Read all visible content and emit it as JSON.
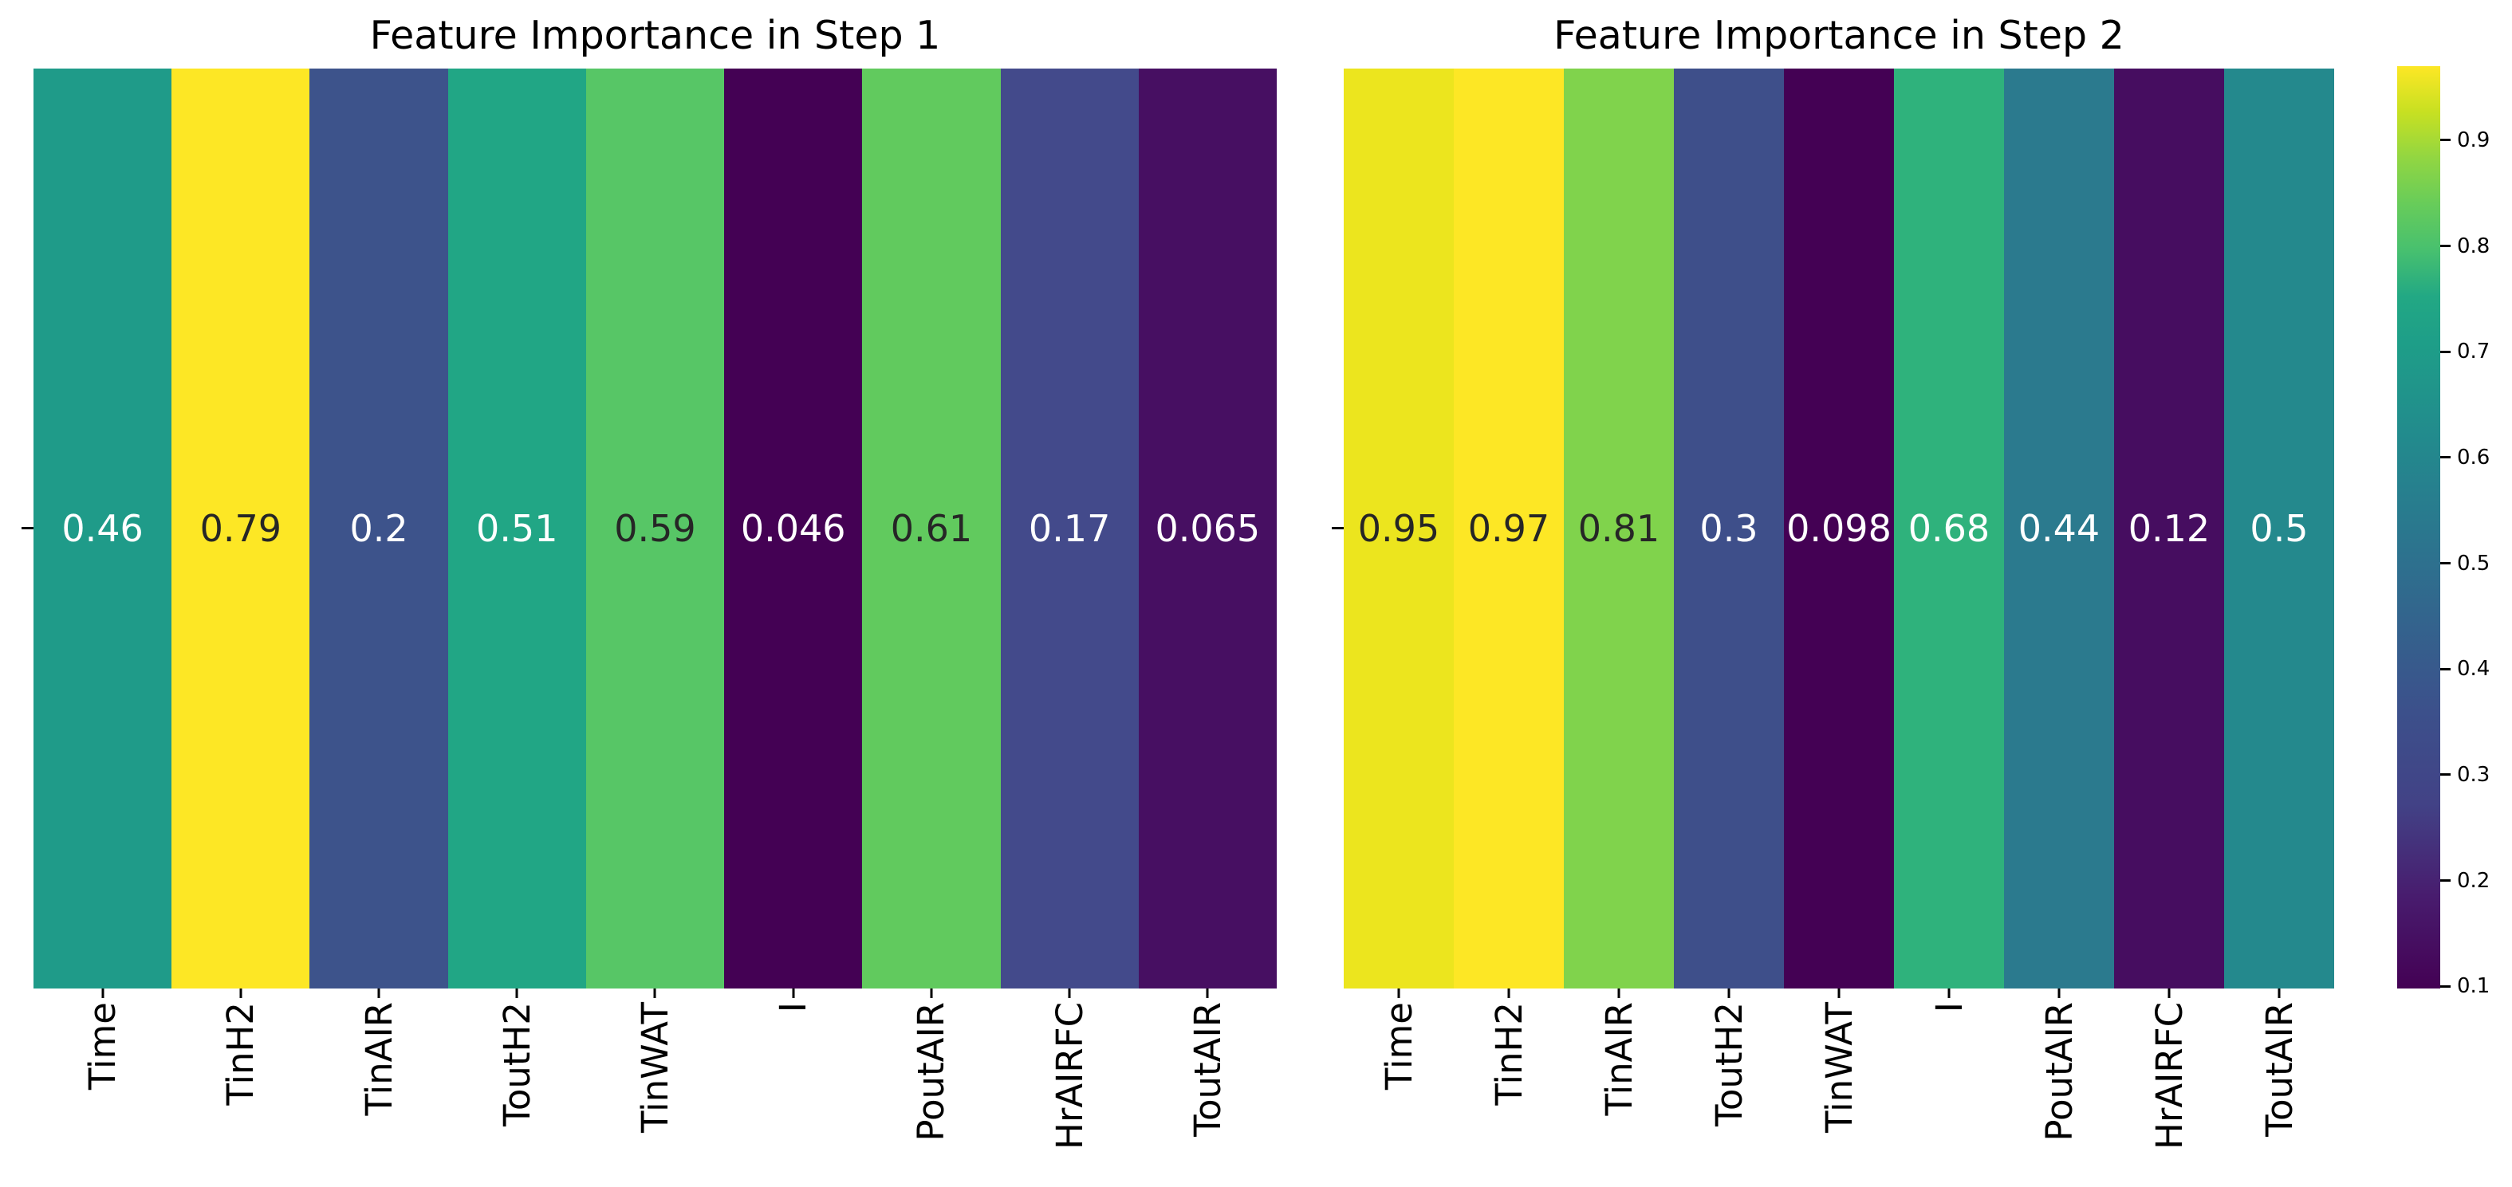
{
  "chart_data": [
    {
      "type": "heatmap",
      "title": "Feature Importance in Step 1",
      "rows": 1,
      "categories": [
        "Time",
        "TinH2",
        "TinAIR",
        "ToutH2",
        "TinWAT",
        "I",
        "PoutAIR",
        "HrAIRFC",
        "ToutAIR"
      ],
      "values": [
        0.46,
        0.79,
        0.2,
        0.51,
        0.59,
        0.046,
        0.61,
        0.17,
        0.065
      ],
      "value_labels": [
        "0.46",
        "0.79",
        "0.2",
        "0.51",
        "0.59",
        "0.046",
        "0.61",
        "0.17",
        "0.065"
      ],
      "colormap": "viridis",
      "vmin": 0.046,
      "vmax": 0.79,
      "cell_colors": [
        "#1f9b89",
        "#fde725",
        "#3d538b",
        "#21a685",
        "#57c666",
        "#440154",
        "#61ca5e",
        "#434a8b",
        "#470f62"
      ],
      "text_colors": [
        "#ffffff",
        "#262626",
        "#ffffff",
        "#ffffff",
        "#262626",
        "#ffffff",
        "#262626",
        "#ffffff",
        "#ffffff"
      ]
    },
    {
      "type": "heatmap",
      "title": "Feature Importance in Step 2",
      "rows": 1,
      "categories": [
        "Time",
        "TinH2",
        "TinAIR",
        "ToutH2",
        "TinWAT",
        "I",
        "PoutAIR",
        "HrAIRFC",
        "ToutAIR"
      ],
      "values": [
        0.95,
        0.97,
        0.81,
        0.3,
        0.098,
        0.68,
        0.44,
        0.12,
        0.5
      ],
      "value_labels": [
        "0.95",
        "0.97",
        "0.81",
        "0.3",
        "0.098",
        "0.68",
        "0.44",
        "0.12",
        "0.5"
      ],
      "colormap": "viridis",
      "vmin": 0.098,
      "vmax": 0.97,
      "cell_colors": [
        "#ece51e",
        "#fde725",
        "#80d34c",
        "#3e4f8a",
        "#440154",
        "#2fb27c",
        "#2b7a8e",
        "#460d60",
        "#24898d"
      ],
      "text_colors": [
        "#262626",
        "#262626",
        "#262626",
        "#ffffff",
        "#ffffff",
        "#ffffff",
        "#ffffff",
        "#ffffff",
        "#ffffff"
      ]
    }
  ],
  "colorbar": {
    "colormap": "viridis",
    "vmin": 0.098,
    "vmax": 0.97,
    "tick_labels": [
      "0.9",
      "0.8",
      "0.7",
      "0.6",
      "0.5",
      "0.4",
      "0.3",
      "0.2",
      "0.1"
    ],
    "tick_values": [
      0.9,
      0.8,
      0.7,
      0.6,
      0.5,
      0.4,
      0.3,
      0.2,
      0.1
    ]
  }
}
